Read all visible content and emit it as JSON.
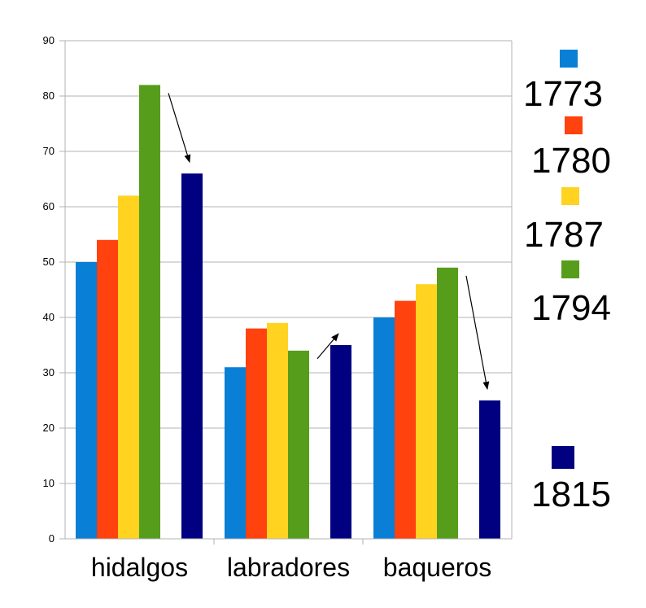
{
  "chart_data": {
    "type": "bar",
    "categories": [
      "hidalgos",
      "labradores",
      "baqueros"
    ],
    "series": [
      {
        "name": "1773",
        "color": "#0a7fd6",
        "values": [
          50,
          31,
          40
        ]
      },
      {
        "name": "1780",
        "color": "#ff420e",
        "values": [
          54,
          38,
          43
        ]
      },
      {
        "name": "1787",
        "color": "#ffd320",
        "values": [
          62,
          39,
          46
        ]
      },
      {
        "name": "1794",
        "color": "#579d1c",
        "values": [
          82,
          34,
          49
        ]
      },
      {
        "name": "1815",
        "color": "#000080",
        "values": [
          66,
          35,
          25
        ]
      }
    ],
    "ylim": [
      0,
      90
    ],
    "yticks": [
      0,
      10,
      20,
      30,
      40,
      50,
      60,
      70,
      80,
      90
    ],
    "grid": true,
    "legend_position": "right",
    "annotations": "arrows from 1794 bar to 1815 bar in each category"
  }
}
